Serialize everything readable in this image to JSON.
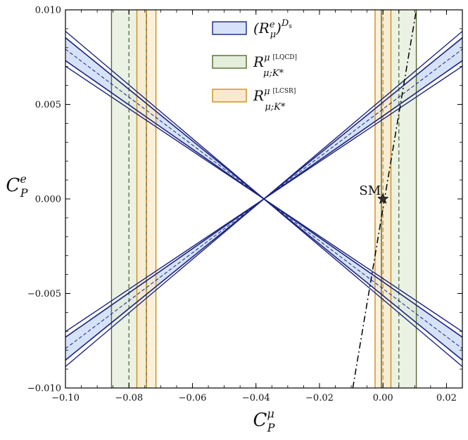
{
  "chart_data": {
    "type": "area",
    "xlabel": "C",
    "xlabel_sub": "P",
    "xlabel_sup": "μ",
    "ylabel": "C",
    "ylabel_sub": "P",
    "ylabel_sup": "e",
    "xlim": [
      -0.1,
      0.025
    ],
    "ylim": [
      -0.01,
      0.01
    ],
    "xticks": [
      -0.1,
      -0.08,
      -0.06,
      -0.04,
      -0.02,
      0.0,
      0.02
    ],
    "xtick_labels": [
      "−0.10",
      "−0.08",
      "−0.06",
      "−0.04",
      "−0.02",
      "0.00",
      "0.02"
    ],
    "yticks": [
      -0.01,
      -0.005,
      0.0,
      0.005,
      0.01
    ],
    "ytick_labels": [
      "−0.010",
      "−0.005",
      "0.000",
      "0.005",
      "0.010"
    ],
    "grid": false,
    "legend_position": "top-center",
    "series": [
      {
        "name": "(R_μ^e)^{D_s}",
        "legend_main": "(R",
        "legend_sub": "μ",
        "legend_sup": "e",
        "legend_tail": ")",
        "legend_exp": "D",
        "legend_exp_sub": "s",
        "kind": "cross-band",
        "color": "#1a237e",
        "fill": "#d6e2f7",
        "center": [
          -0.0375,
          0.0
        ],
        "slope_outer": 0.1364,
        "slope_inner": 0.117
      },
      {
        "name": "R^μ_{μ;K*} [LQCD]",
        "legend_main": "R",
        "legend_sup": "μ",
        "legend_tag": "[LQCD]",
        "legend_sub": "μ;K*",
        "kind": "vertical-bands",
        "color": "#556b2f",
        "fill": "#e4eedb",
        "bands": [
          [
            -0.0855,
            -0.0745
          ],
          [
            -0.0005,
            0.0105
          ]
        ],
        "centers": [
          -0.08,
          0.005
        ]
      },
      {
        "name": "R^μ_{μ;K*} [LCSR]",
        "legend_main": "R",
        "legend_sup": "μ",
        "legend_tag": "[LCSR]",
        "legend_sub": "μ;K*",
        "kind": "vertical-bands",
        "color": "#c8901a",
        "fill": "#fbe9cf",
        "bands": [
          [
            -0.0775,
            -0.0715
          ],
          [
            -0.0025,
            0.0025
          ]
        ],
        "centers": [
          -0.0745,
          0.0
        ]
      },
      {
        "name": "",
        "kind": "line",
        "style": "dash-dot",
        "color": "#000000",
        "points": [
          [
            -0.0095,
            -0.01
          ],
          [
            0.0105,
            0.01
          ]
        ]
      }
    ],
    "annotations": [
      {
        "text": "SM",
        "x": 0.0,
        "y": 0.0,
        "marker": "star"
      }
    ]
  }
}
